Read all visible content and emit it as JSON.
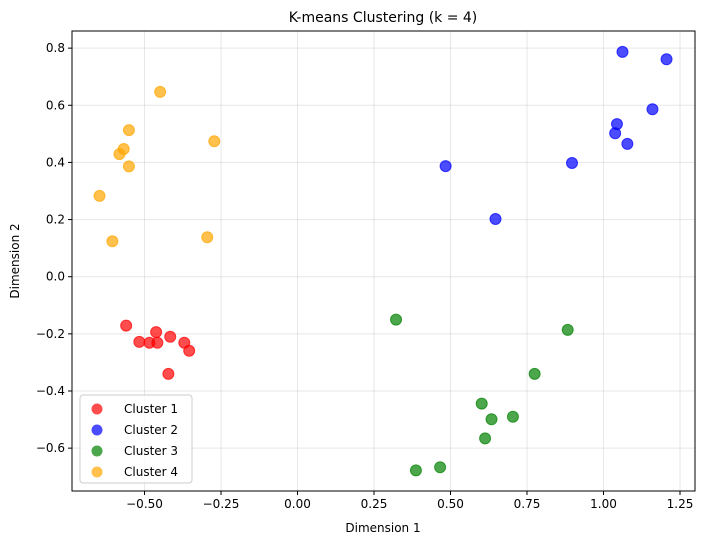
{
  "chart_data": {
    "type": "scatter",
    "title": "K-means Clustering (k = 4)",
    "xlabel": "Dimension 1",
    "ylabel": "Dimension 2",
    "xlim": [
      -0.737,
      1.299
    ],
    "ylim": [
      -0.75,
      0.86
    ],
    "xticks": [
      -0.5,
      -0.25,
      0.0,
      0.25,
      0.5,
      0.75,
      1.0,
      1.25
    ],
    "xtick_labels": [
      "−0.50",
      "−0.25",
      "0.00",
      "0.25",
      "0.50",
      "0.75",
      "1.00",
      "1.25"
    ],
    "yticks": [
      -0.6,
      -0.4,
      -0.2,
      0.0,
      0.2,
      0.4,
      0.6,
      0.8
    ],
    "ytick_labels": [
      "−0.6",
      "−0.4",
      "−0.2",
      "0.0",
      "0.2",
      "0.4",
      "0.6",
      "0.8"
    ],
    "grid": true,
    "legend_position": "lower-left",
    "series": [
      {
        "name": "Cluster 1",
        "color": "#ff0000",
        "points": [
          [
            -0.56,
            -0.171
          ],
          [
            -0.517,
            -0.228
          ],
          [
            -0.484,
            -0.231
          ],
          [
            -0.462,
            -0.194
          ],
          [
            -0.458,
            -0.231
          ],
          [
            -0.416,
            -0.21
          ],
          [
            -0.37,
            -0.231
          ],
          [
            -0.354,
            -0.259
          ],
          [
            -0.422,
            -0.34
          ]
        ]
      },
      {
        "name": "Cluster 2",
        "color": "#0000ff",
        "points": [
          [
            1.062,
            0.787
          ],
          [
            1.206,
            0.761
          ],
          [
            1.16,
            0.586
          ],
          [
            1.044,
            0.534
          ],
          [
            1.038,
            0.502
          ],
          [
            1.078,
            0.465
          ],
          [
            0.897,
            0.398
          ],
          [
            0.484,
            0.387
          ],
          [
            0.647,
            0.202
          ]
        ]
      },
      {
        "name": "Cluster 3",
        "color": "#008000",
        "points": [
          [
            0.322,
            -0.15
          ],
          [
            0.883,
            -0.186
          ],
          [
            0.775,
            -0.34
          ],
          [
            0.602,
            -0.444
          ],
          [
            0.704,
            -0.49
          ],
          [
            0.634,
            -0.499
          ],
          [
            0.613,
            -0.566
          ],
          [
            0.466,
            -0.667
          ],
          [
            0.387,
            -0.678
          ]
        ]
      },
      {
        "name": "Cluster 4",
        "color": "#ffa500",
        "points": [
          [
            -0.449,
            0.647
          ],
          [
            -0.551,
            0.513
          ],
          [
            -0.568,
            0.447
          ],
          [
            -0.582,
            0.429
          ],
          [
            -0.551,
            0.386
          ],
          [
            -0.272,
            0.474
          ],
          [
            -0.647,
            0.283
          ],
          [
            -0.605,
            0.124
          ],
          [
            -0.295,
            0.138
          ]
        ]
      }
    ]
  }
}
